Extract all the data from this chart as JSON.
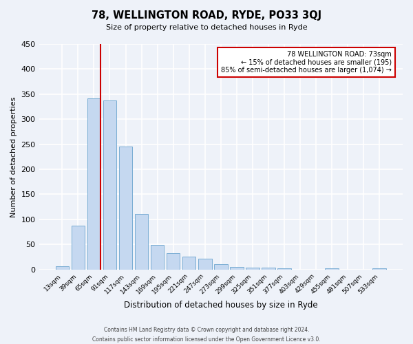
{
  "title": "78, WELLINGTON ROAD, RYDE, PO33 3QJ",
  "subtitle": "Size of property relative to detached houses in Ryde",
  "xlabel": "Distribution of detached houses by size in Ryde",
  "ylabel": "Number of detached properties",
  "bar_labels": [
    "13sqm",
    "39sqm",
    "65sqm",
    "91sqm",
    "117sqm",
    "143sqm",
    "169sqm",
    "195sqm",
    "221sqm",
    "247sqm",
    "273sqm",
    "299sqm",
    "325sqm",
    "351sqm",
    "377sqm",
    "403sqm",
    "429sqm",
    "455sqm",
    "481sqm",
    "507sqm",
    "533sqm"
  ],
  "bar_values": [
    7,
    88,
    342,
    337,
    246,
    111,
    49,
    32,
    26,
    22,
    10,
    5,
    4,
    4,
    3,
    0,
    0,
    2,
    0,
    0,
    2
  ],
  "bar_color": "#c5d8f0",
  "bar_edge_color": "#7aadd4",
  "vline_color": "#cc0000",
  "annotation_title": "78 WELLINGTON ROAD: 73sqm",
  "annotation_line1": "← 15% of detached houses are smaller (195)",
  "annotation_line2": "85% of semi-detached houses are larger (1,074) →",
  "annotation_box_color": "#ffffff",
  "annotation_border_color": "#cc0000",
  "ylim": [
    0,
    450
  ],
  "yticks": [
    0,
    50,
    100,
    150,
    200,
    250,
    300,
    350,
    400,
    450
  ],
  "footnote1": "Contains HM Land Registry data © Crown copyright and database right 2024.",
  "footnote2": "Contains public sector information licensed under the Open Government Licence v3.0.",
  "bg_color": "#eef2f9",
  "plot_bg_color": "#eef2f9",
  "grid_color": "#ffffff"
}
